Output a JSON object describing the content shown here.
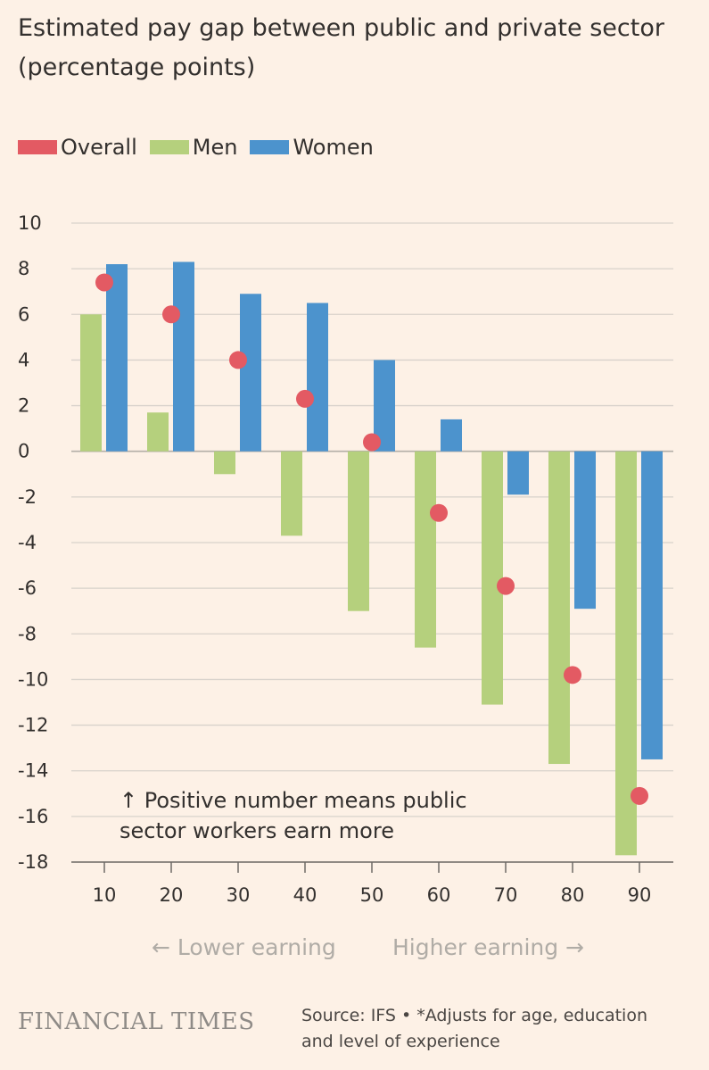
{
  "chart_data": {
    "type": "bar",
    "title": "Estimated pay gap between public and private sector (percentage points)",
    "categories": [
      "10",
      "20",
      "30",
      "40",
      "50",
      "60",
      "70",
      "80",
      "90"
    ],
    "series": [
      {
        "name": "Men",
        "kind": "bar",
        "color": "#b5d07d",
        "values": [
          6.0,
          1.7,
          -1.0,
          -3.7,
          -7.0,
          -8.6,
          -11.1,
          -13.7,
          -17.7
        ]
      },
      {
        "name": "Women",
        "kind": "bar",
        "color": "#4c93cd",
        "values": [
          8.2,
          8.3,
          6.9,
          6.5,
          4.0,
          1.4,
          -1.9,
          -6.9,
          -13.5
        ]
      },
      {
        "name": "Overall",
        "kind": "dot",
        "color": "#e35a63",
        "values": [
          7.4,
          6.0,
          4.0,
          2.3,
          0.4,
          -2.7,
          -5.9,
          -9.8,
          -15.1
        ]
      }
    ],
    "ylim": [
      -18,
      10
    ],
    "yticks": [
      "10",
      "8",
      "6",
      "4",
      "2",
      "0",
      "-2",
      "-4",
      "-6",
      "-8",
      "-10",
      "-12",
      "-14",
      "-16",
      "-18"
    ],
    "ytick_values": [
      10,
      8,
      6,
      4,
      2,
      0,
      -2,
      -4,
      -6,
      -8,
      -10,
      -12,
      -14,
      -16,
      -18
    ],
    "grid": true,
    "legend_position": "top-left"
  },
  "title": "Estimated pay gap between public and private sector (percentage points)",
  "legend": [
    {
      "label": "Overall",
      "color": "#e35a63"
    },
    {
      "label": "Men",
      "color": "#b5d07d"
    },
    {
      "label": "Women",
      "color": "#4c93cd"
    }
  ],
  "annotation": {
    "line1": "↑ Positive number means public",
    "line2": "sector workers earn more"
  },
  "direction": {
    "lower": "← Lower earning",
    "higher": "Higher earning →"
  },
  "footer": {
    "brand": "FINANCIAL TIMES",
    "source_line1": "Source: IFS • *Adjusts for age, education",
    "source_line2": "and level of experience"
  }
}
